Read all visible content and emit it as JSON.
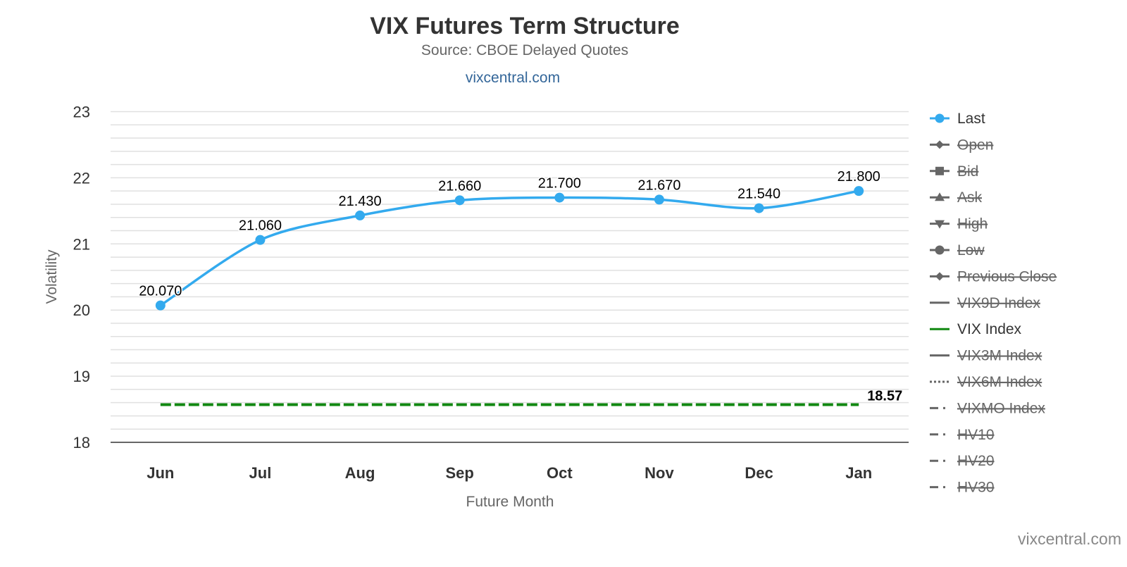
{
  "chart_data": {
    "type": "line",
    "title": "VIX Futures Term Structure",
    "subtitle": "Source: CBOE Delayed Quotes",
    "link": "vixcentral.com",
    "credit": "vixcentral.com",
    "xlabel": "Future Month",
    "ylabel": "Volatility",
    "ylim": [
      18,
      23
    ],
    "yticks": [
      18,
      19,
      20,
      21,
      22,
      23
    ],
    "minor_grid_step": 0.2,
    "grid": true,
    "legend_placement": "right",
    "categories": [
      "Jun",
      "Jul",
      "Aug",
      "Sep",
      "Oct",
      "Nov",
      "Dec",
      "Jan"
    ],
    "series": [
      {
        "name": "Last",
        "values": [
          20.07,
          21.06,
          21.43,
          21.66,
          21.7,
          21.67,
          21.54,
          21.8
        ],
        "labels": [
          "20.070",
          "21.060",
          "21.430",
          "21.660",
          "21.700",
          "21.670",
          "21.540",
          "21.800"
        ],
        "color": "#33aaee",
        "visible": true
      }
    ],
    "reference_line": {
      "name": "VIX Index",
      "value": 18.57,
      "label": "18.57",
      "color": "#118811"
    },
    "legend": [
      {
        "name": "Last",
        "symbol": "circle",
        "visible": true,
        "color": "#33aaee"
      },
      {
        "name": "Open",
        "symbol": "diamond",
        "visible": false
      },
      {
        "name": "Bid",
        "symbol": "square",
        "visible": false
      },
      {
        "name": "Ask",
        "symbol": "triangle",
        "visible": false
      },
      {
        "name": "High",
        "symbol": "triangle-down",
        "visible": false
      },
      {
        "name": "Low",
        "symbol": "circle",
        "visible": false
      },
      {
        "name": "Previous Close",
        "symbol": "diamond",
        "visible": false
      },
      {
        "name": "VIX9D Index",
        "symbol": "line",
        "visible": false
      },
      {
        "name": "VIX Index",
        "symbol": "line",
        "visible": true,
        "color": "#118811"
      },
      {
        "name": "VIX3M Index",
        "symbol": "line",
        "visible": false
      },
      {
        "name": "VIX6M Index",
        "symbol": "dotted",
        "visible": false
      },
      {
        "name": "VIXMO Index",
        "symbol": "dashdot",
        "visible": false
      },
      {
        "name": "HV10",
        "symbol": "dashdot",
        "visible": false
      },
      {
        "name": "HV20",
        "symbol": "dashdot",
        "visible": false
      },
      {
        "name": "HV30",
        "symbol": "dashdot",
        "visible": false
      }
    ]
  }
}
